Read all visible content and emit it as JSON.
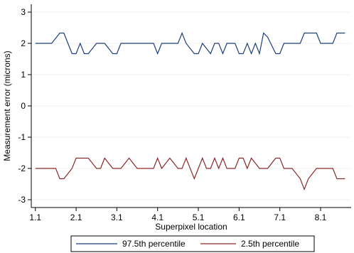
{
  "chart_data": {
    "type": "line",
    "xlabel": "Superpixel location",
    "ylabel": "Measurement error (microns)",
    "xlim": [
      1.0,
      8.85
    ],
    "ylim": [
      -3.25,
      3.25
    ],
    "x_ticks": [
      1.1,
      2.1,
      3.1,
      4.1,
      5.1,
      6.1,
      7.1,
      8.1
    ],
    "x_tick_labels": [
      "1.1",
      "2.1",
      "3.1",
      "4.1",
      "5.1",
      "6.1",
      "7.1",
      "8.1"
    ],
    "y_ticks": [
      -3,
      -2,
      -1,
      0,
      1,
      2,
      3
    ],
    "y_tick_labels": [
      "-3",
      "-2",
      "-1",
      "0",
      "1",
      "2",
      "3"
    ],
    "grid": true,
    "legend_position": "bottom",
    "series": [
      {
        "name": "97.5th percentile",
        "color": "#1f3f7a",
        "x": [
          1.1,
          1.3,
          1.5,
          1.7,
          1.8,
          2.0,
          2.1,
          2.2,
          2.3,
          2.4,
          2.6,
          2.7,
          2.8,
          3.0,
          3.1,
          3.2,
          3.4,
          3.6,
          3.8,
          4.0,
          4.1,
          4.2,
          4.4,
          4.6,
          4.7,
          4.8,
          5.0,
          5.1,
          5.2,
          5.4,
          5.5,
          5.6,
          5.7,
          5.8,
          6.0,
          6.1,
          6.2,
          6.3,
          6.4,
          6.5,
          6.6,
          6.7,
          6.8,
          7.0,
          7.1,
          7.2,
          7.4,
          7.6,
          7.7,
          7.8,
          8.0,
          8.1,
          8.2,
          8.4,
          8.5,
          8.6,
          8.7
        ],
        "values": [
          2.0,
          2.0,
          2.0,
          2.33,
          2.33,
          1.67,
          1.67,
          2.0,
          1.67,
          1.67,
          2.0,
          2.0,
          2.0,
          1.67,
          1.67,
          2.0,
          2.0,
          2.0,
          2.0,
          2.0,
          1.67,
          2.0,
          2.0,
          2.0,
          2.33,
          2.0,
          1.67,
          1.67,
          2.0,
          1.67,
          2.0,
          2.0,
          1.67,
          2.0,
          2.0,
          1.67,
          1.67,
          2.0,
          1.67,
          2.0,
          1.67,
          2.33,
          2.2,
          1.67,
          1.67,
          2.0,
          2.0,
          2.0,
          2.33,
          2.33,
          2.33,
          2.0,
          2.0,
          2.0,
          2.33,
          2.33,
          2.33
        ]
      },
      {
        "name": "2.5th percentile",
        "color": "#8b2a2a",
        "x": [
          1.1,
          1.3,
          1.5,
          1.6,
          1.7,
          1.8,
          2.0,
          2.1,
          2.2,
          2.3,
          2.4,
          2.6,
          2.7,
          2.8,
          3.0,
          3.1,
          3.2,
          3.4,
          3.6,
          3.7,
          3.8,
          4.0,
          4.1,
          4.2,
          4.4,
          4.6,
          4.7,
          4.8,
          5.0,
          5.1,
          5.2,
          5.3,
          5.4,
          5.5,
          5.6,
          5.7,
          5.8,
          6.0,
          6.1,
          6.2,
          6.3,
          6.4,
          6.6,
          6.7,
          6.8,
          7.0,
          7.1,
          7.2,
          7.3,
          7.4,
          7.6,
          7.7,
          7.8,
          8.0,
          8.1,
          8.2,
          8.4,
          8.5,
          8.6,
          8.7
        ],
        "values": [
          -2.0,
          -2.0,
          -2.0,
          -2.0,
          -2.33,
          -2.33,
          -2.0,
          -1.67,
          -1.67,
          -1.67,
          -1.67,
          -2.0,
          -2.0,
          -1.67,
          -2.0,
          -2.0,
          -2.0,
          -1.67,
          -2.0,
          -2.0,
          -2.0,
          -2.0,
          -1.67,
          -2.0,
          -1.67,
          -2.0,
          -2.0,
          -1.67,
          -2.33,
          -2.0,
          -1.67,
          -2.0,
          -2.0,
          -1.67,
          -2.0,
          -1.67,
          -2.0,
          -2.0,
          -1.67,
          -1.67,
          -2.0,
          -1.67,
          -2.0,
          -2.0,
          -2.0,
          -1.67,
          -1.67,
          -2.0,
          -2.0,
          -2.0,
          -2.33,
          -2.67,
          -2.33,
          -2.0,
          -2.0,
          -2.0,
          -2.0,
          -2.33,
          -2.33,
          -2.33
        ]
      }
    ]
  }
}
